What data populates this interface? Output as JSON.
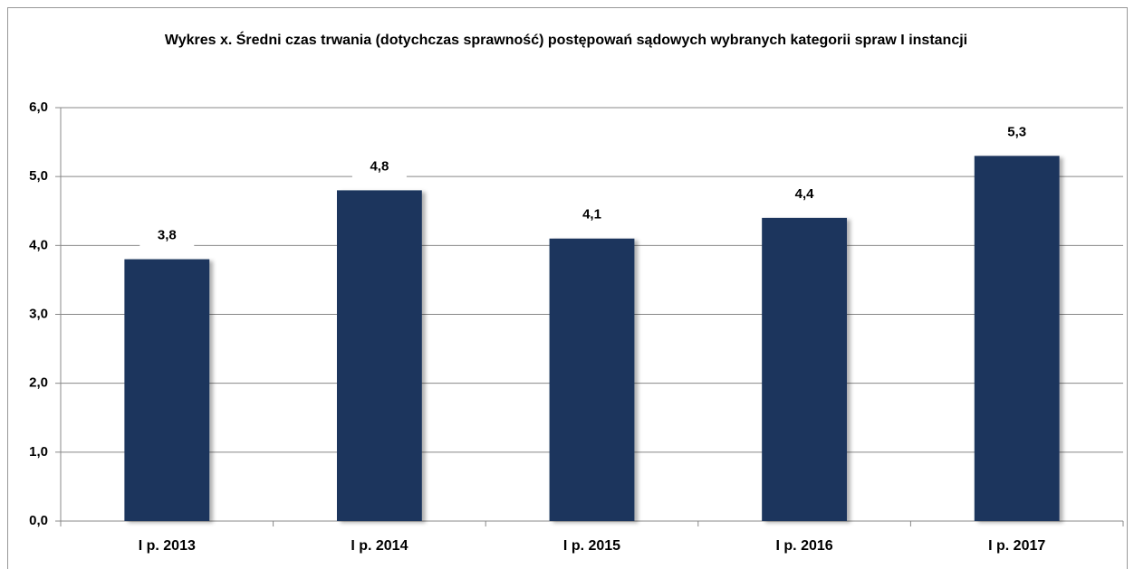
{
  "chart_data": {
    "type": "bar",
    "title": "Wykres x. Średni czas trwania (dotychczas sprawność) postępowań sądowych wybranych kategorii spraw I instancji",
    "categories": [
      "I p. 2013",
      "I p. 2014",
      "I p. 2015",
      "I p. 2016",
      "I p. 2017"
    ],
    "values": [
      3.8,
      4.8,
      4.1,
      4.4,
      5.3
    ],
    "value_labels": [
      "3,8",
      "4,8",
      "4,1",
      "4,4",
      "5,3"
    ],
    "color": "#1b365d",
    "ylim": [
      0,
      6
    ],
    "yticks": [
      {
        "value": 0,
        "label": "0,0"
      },
      {
        "value": 1,
        "label": "1,0"
      },
      {
        "value": 2,
        "label": "2,0"
      },
      {
        "value": 3,
        "label": "3,0"
      },
      {
        "value": 4,
        "label": "4,0"
      },
      {
        "value": 5,
        "label": "5,0"
      },
      {
        "value": 6,
        "label": "6,0"
      }
    ],
    "grid": true
  }
}
